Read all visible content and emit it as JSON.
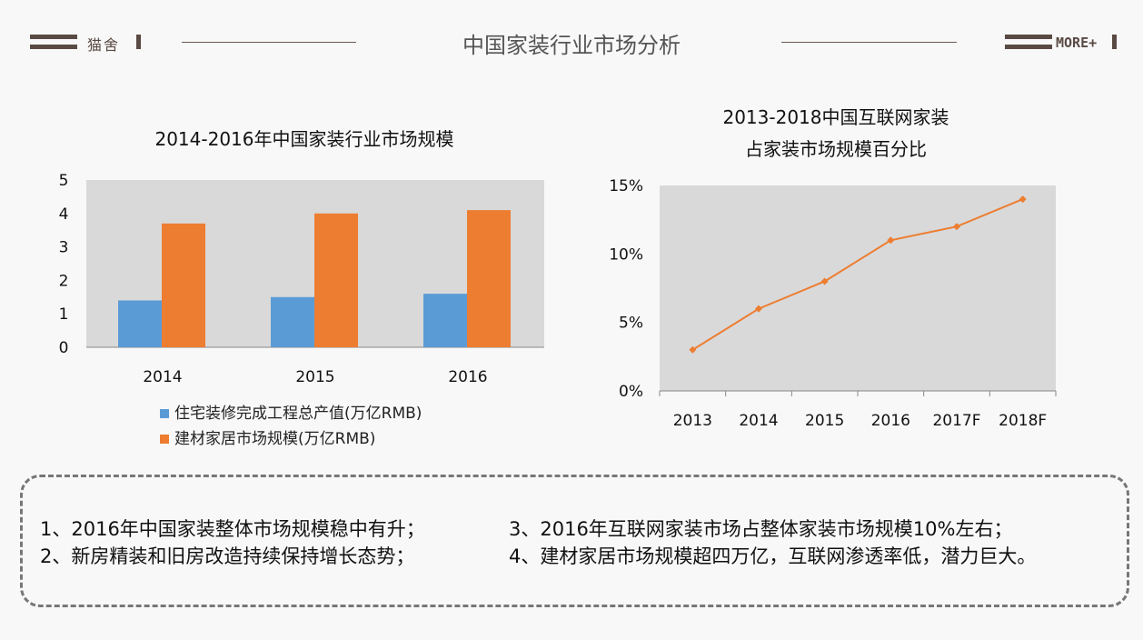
{
  "header": {
    "brand": "猫舍",
    "title": "中国家装行业市场分析",
    "more": "MORE+"
  },
  "chart_data": [
    {
      "type": "bar",
      "title": "2014-2016年中国家装行业市场规模",
      "categories": [
        "2014",
        "2015",
        "2016"
      ],
      "yticks": [
        "0",
        "1",
        "2",
        "3",
        "4",
        "5"
      ],
      "ylim": [
        0,
        5
      ],
      "grid": false,
      "legend_position": "bottom-left",
      "series": [
        {
          "name": "住宅装修完成工程总产值(万亿RMB)",
          "color": "#5b9bd5",
          "values": [
            1.4,
            1.5,
            1.6
          ]
        },
        {
          "name": "建材家居市场规模(万亿RMB)",
          "color": "#ed7d31",
          "values": [
            3.7,
            4.0,
            4.1
          ]
        }
      ]
    },
    {
      "type": "line",
      "title": "2013-2018中国互联网家装占家装市场规模百分比",
      "title_lines": [
        "2013-2018中国互联网家装",
        "占家装市场规模百分比"
      ],
      "categories": [
        "2013",
        "2014",
        "2015",
        "2016",
        "2017F",
        "2018F"
      ],
      "yticks": [
        "0%",
        "5%",
        "10%",
        "15%"
      ],
      "ylim": [
        0,
        15
      ],
      "grid": false,
      "series": [
        {
          "color": "#ed7d31",
          "values": [
            3,
            6,
            8,
            11,
            12,
            14
          ]
        }
      ]
    }
  ],
  "summary": {
    "items": [
      "1、2016年中国家装整体市场规模稳中有升；",
      "2、新房精装和旧房改造持续保持增长态势；",
      "3、2016年互联网家装市场占整体家装市场规模10%左右；",
      "4、建材家居市场规模超四万亿，互联网渗透率低，潜力巨大。"
    ]
  }
}
